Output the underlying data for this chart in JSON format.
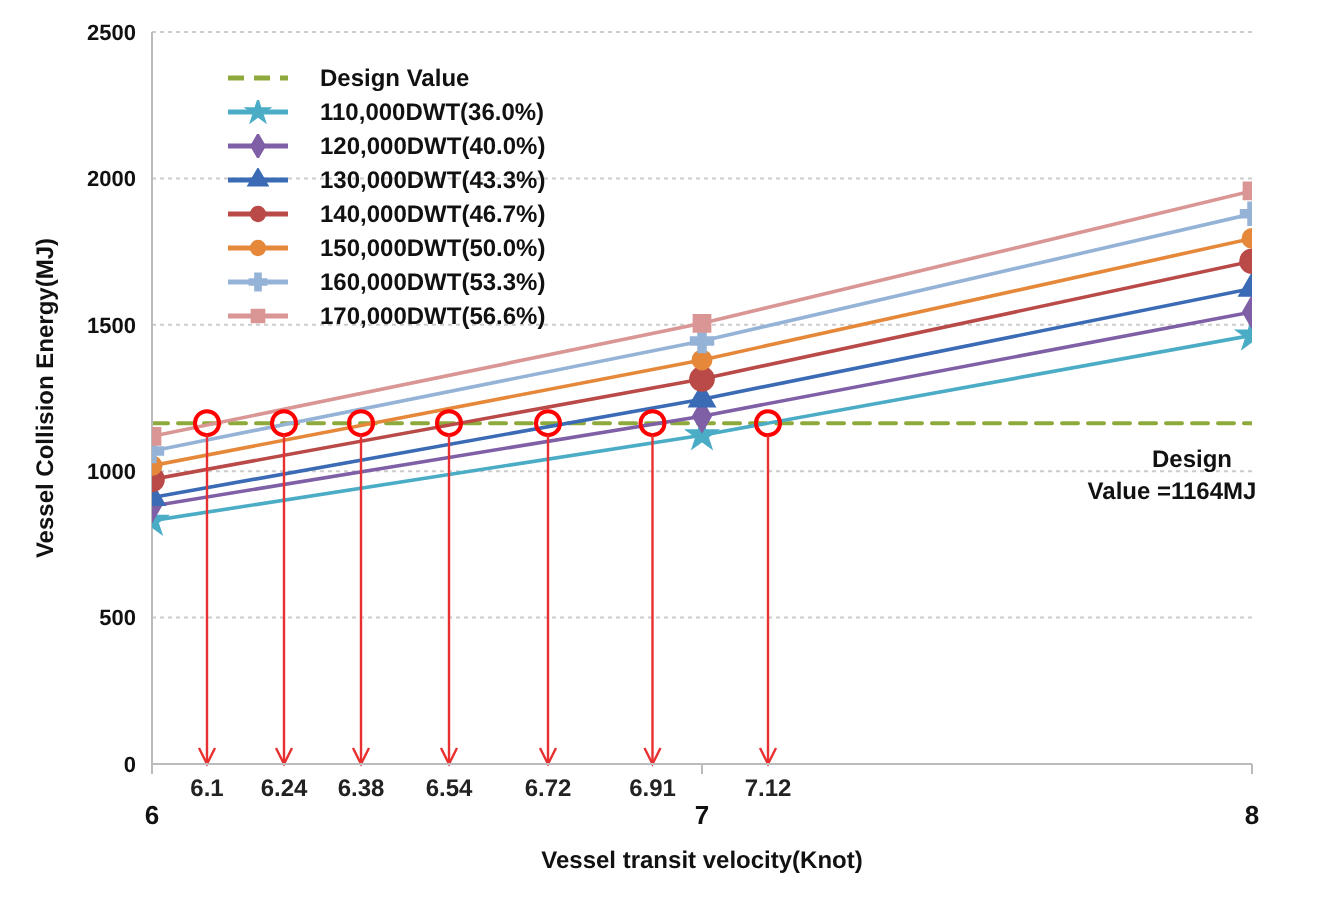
{
  "chart_data": {
    "type": "line",
    "xlabel": "Vessel transit velocity(Knot)",
    "ylabel": "Vessel Collision Energy(MJ)",
    "xlim": [
      6,
      8
    ],
    "xticks": [
      6,
      7,
      8
    ],
    "ylim": [
      0,
      2500
    ],
    "yticks": [
      0,
      500,
      1000,
      1500,
      2000,
      2500
    ],
    "grid": "y",
    "legend": "top left",
    "series": [
      {
        "name": "Design Value",
        "color": "#8faa3c",
        "x": [
          6,
          8
        ],
        "values": [
          1164,
          1164
        ],
        "line_style": "dashed",
        "marker": "none"
      },
      {
        "name": "110,000DWT(36.0%)",
        "color": "#4bacc6",
        "x": [
          6,
          7,
          8
        ],
        "values": [
          831,
          1123,
          1464
        ],
        "marker": "star"
      },
      {
        "name": "120,000DWT(40.0%)",
        "color": "#7f5fa6",
        "x": [
          6,
          7,
          8
        ],
        "values": [
          881,
          1188,
          1544
        ],
        "marker": "diamond"
      },
      {
        "name": "130,000DWT(43.3%)",
        "color": "#3b6bb5",
        "x": [
          6,
          7,
          8
        ],
        "values": [
          910,
          1246,
          1624
        ],
        "marker": "triangle"
      },
      {
        "name": "140,000DWT(46.7%)",
        "color": "#b94a48",
        "x": [
          6,
          7,
          8
        ],
        "values": [
          972,
          1315,
          1717
        ],
        "marker": "circle"
      },
      {
        "name": "150,000DWT(50.0%)",
        "color": "#e5883a",
        "x": [
          6,
          7,
          8
        ],
        "values": [
          1019,
          1380,
          1795
        ],
        "marker": "circle"
      },
      {
        "name": "160,000DWT(53.3%)",
        "color": "#95b3d7",
        "x": [
          6,
          7,
          8
        ],
        "values": [
          1069,
          1445,
          1879
        ],
        "marker": "cross"
      },
      {
        "name": "170,000DWT(56.6%)",
        "color": "#d99694",
        "x": [
          6,
          7,
          8
        ],
        "values": [
          1119,
          1505,
          1957
        ],
        "marker": "square"
      }
    ],
    "annotations": [
      {
        "text": "6.1",
        "x": 6.1,
        "y": 1164
      },
      {
        "text": "6.24",
        "x": 6.24,
        "y": 1164
      },
      {
        "text": "6.38",
        "x": 6.38,
        "y": 1164
      },
      {
        "text": "6.54",
        "x": 6.54,
        "y": 1164
      },
      {
        "text": "6.72",
        "x": 6.72,
        "y": 1164
      },
      {
        "text": "6.91",
        "x": 6.91,
        "y": 1164
      },
      {
        "text": "7.12",
        "x": 7.12,
        "y": 1164
      },
      "Design Value =1164MJ"
    ]
  }
}
